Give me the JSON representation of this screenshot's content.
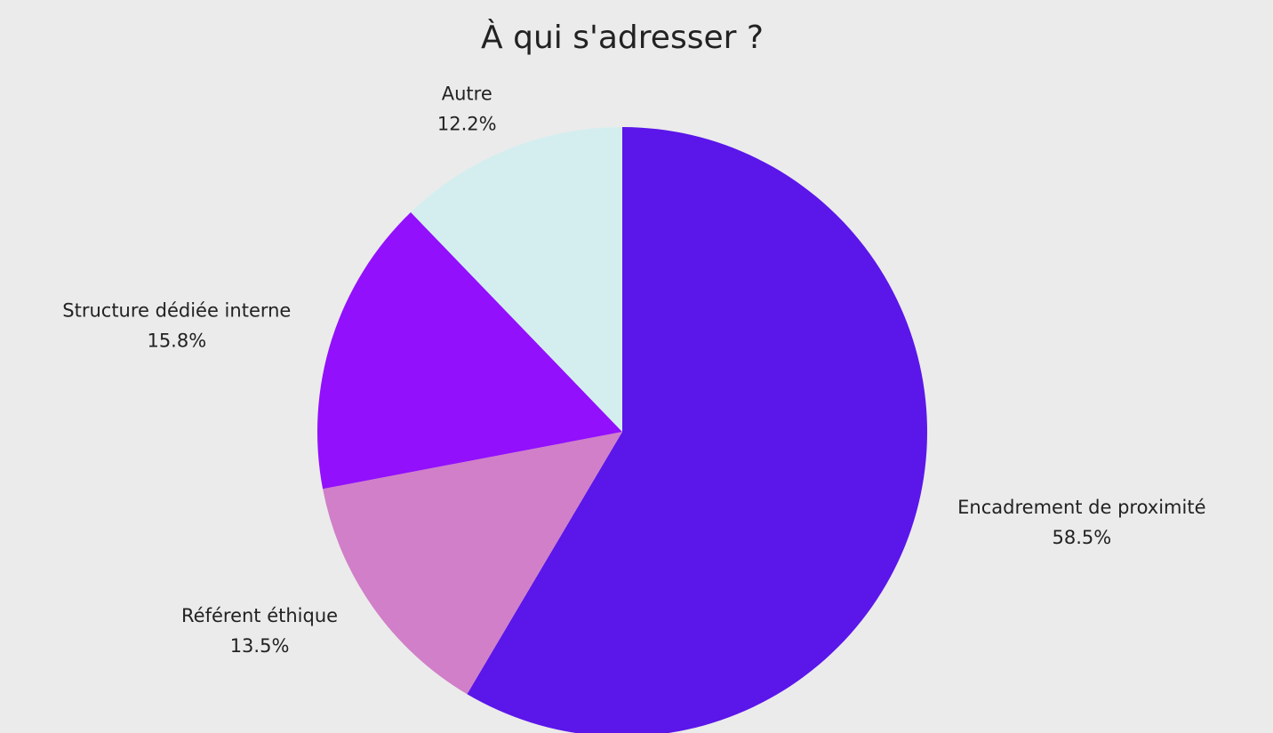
{
  "chart_data": {
    "type": "pie",
    "title": "À qui s'adresser ?",
    "categories": [
      "Encadrement de proximité",
      "Référent éthique",
      "Structure dédiée interne",
      "Autre"
    ],
    "values": [
      58.5,
      13.5,
      15.8,
      12.2
    ],
    "value_labels": [
      "58.5%",
      "13.5%",
      "15.8%",
      "12.2%"
    ],
    "colors": [
      "#5b16ea",
      "#d17fc8",
      "#9210fb",
      "#d4eef0"
    ]
  }
}
